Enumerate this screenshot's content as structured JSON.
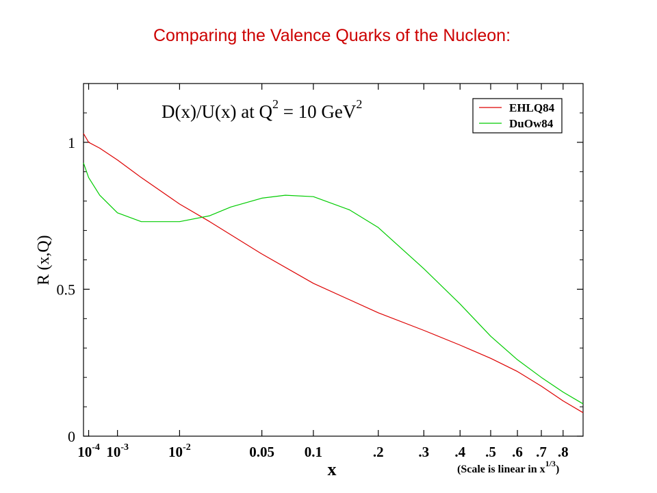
{
  "slide_title": "Comparing the Valence Quarks of the Nucleon:",
  "chart_data": {
    "type": "line",
    "title": {
      "main": "D(x)/U(x) at Q",
      "sup1": "2",
      "mid": " = 10 GeV",
      "sup2": "2"
    },
    "xlabel": "x",
    "ylabel": "R (x,Q)",
    "x_scale": "linear in x^(1/3)",
    "x_note": {
      "main": "(Scale is linear in x",
      "sup": "1/3",
      "end": ")"
    },
    "xlim": [
      5e-05,
      0.9
    ],
    "ylim": [
      0,
      1.2
    ],
    "y_ticks": [
      {
        "value": 0,
        "label": "0"
      },
      {
        "value": 0.5,
        "label": "0.5"
      },
      {
        "value": 1,
        "label": "1"
      }
    ],
    "y_minor_ticks": [
      0.1,
      0.2,
      0.3,
      0.4,
      0.6,
      0.7,
      0.8,
      0.9,
      1.1
    ],
    "x_ticks": [
      {
        "value": 0.0001,
        "label": "10",
        "sup": "-4"
      },
      {
        "value": 0.001,
        "label": "10",
        "sup": "-3"
      },
      {
        "value": 0.01,
        "label": "10",
        "sup": "-2"
      },
      {
        "value": 0.05,
        "label": "0.05"
      },
      {
        "value": 0.1,
        "label": "0.1"
      },
      {
        "value": 0.2,
        "label": ".2"
      },
      {
        "value": 0.3,
        "label": ".3"
      },
      {
        "value": 0.4,
        "label": ".4"
      },
      {
        "value": 0.5,
        "label": ".5"
      },
      {
        "value": 0.6,
        "label": ".6"
      },
      {
        "value": 0.7,
        "label": ".7"
      },
      {
        "value": 0.8,
        "label": ".8"
      }
    ],
    "legend_position": "top-right",
    "series": [
      {
        "name": "EHLQ84",
        "color": "#dd0000",
        "x": [
          5e-05,
          0.0001,
          0.0003,
          0.001,
          0.003,
          0.01,
          0.02,
          0.05,
          0.1,
          0.2,
          0.3,
          0.4,
          0.5,
          0.6,
          0.7,
          0.8,
          0.9
        ],
        "y": [
          1.03,
          1.0,
          0.98,
          0.94,
          0.88,
          0.79,
          0.73,
          0.62,
          0.52,
          0.42,
          0.36,
          0.31,
          0.265,
          0.22,
          0.17,
          0.12,
          0.08
        ]
      },
      {
        "name": "DuOw84",
        "color": "#00cc00",
        "x": [
          5e-05,
          0.0001,
          0.0003,
          0.001,
          0.003,
          0.005,
          0.01,
          0.02,
          0.03,
          0.05,
          0.07,
          0.1,
          0.15,
          0.2,
          0.3,
          0.4,
          0.5,
          0.6,
          0.7,
          0.8,
          0.9
        ],
        "y": [
          0.93,
          0.88,
          0.82,
          0.76,
          0.73,
          0.73,
          0.73,
          0.75,
          0.78,
          0.81,
          0.82,
          0.815,
          0.77,
          0.71,
          0.57,
          0.45,
          0.34,
          0.26,
          0.2,
          0.15,
          0.11
        ]
      }
    ]
  }
}
